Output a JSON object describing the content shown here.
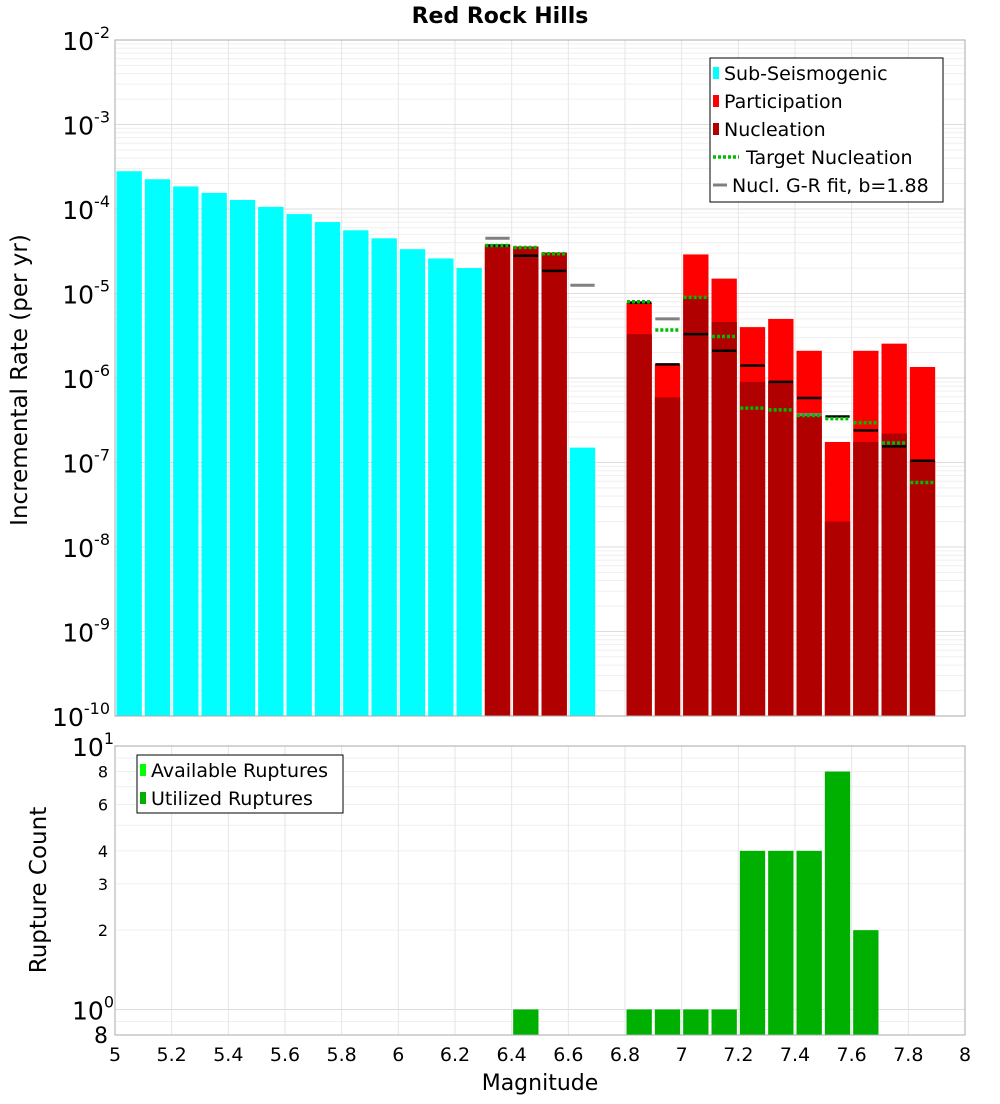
{
  "chart_data": [
    {
      "type": "bar",
      "scale": "log",
      "title": "Red Rock Hills",
      "xlabel": "",
      "ylabel": "Incremental Rate (per yr)",
      "xlim": [
        5,
        8
      ],
      "ylim": [
        1e-10,
        0.01
      ],
      "ytick_bases": [
        "10",
        "10",
        "10",
        "10",
        "10",
        "10",
        "10",
        "10",
        "10"
      ],
      "ytick_exps": [
        "-10",
        "-9",
        "-8",
        "-7",
        "-6",
        "-5",
        "-4",
        "-3",
        "-2"
      ],
      "ytick_values": [
        1e-10,
        1e-09,
        1e-08,
        1e-07,
        1e-06,
        1e-05,
        0.0001,
        0.001,
        0.01
      ],
      "bin_width": 0.1,
      "colors": {
        "sub_seismogenic": "#00ffff",
        "participation": "#ff0000",
        "nucleation": "#b00000",
        "target_nucleation": "#00bb00",
        "gr_fit": "#808080",
        "nucleation_marker": "#000000"
      },
      "legend": {
        "position": "top-right",
        "entries": [
          "Sub-Seismogenic",
          "Participation",
          "Nucleation",
          "Target Nucleation",
          "Nucl. G-R fit, b=1.88"
        ]
      },
      "sub_seismogenic": {
        "x": [
          5.05,
          5.15,
          5.25,
          5.35,
          5.45,
          5.55,
          5.65,
          5.75,
          5.85,
          5.95,
          6.05,
          6.15,
          6.25,
          6.65
        ],
        "values": [
          0.00028,
          0.000225,
          0.000185,
          0.000155,
          0.000128,
          0.000106,
          8.7e-05,
          7e-05,
          5.6e-05,
          4.5e-05,
          3.35e-05,
          2.6e-05,
          2e-05,
          1.5e-07
        ]
      },
      "participation": {
        "x": [
          6.35,
          6.45,
          6.55,
          6.85,
          6.95,
          7.05,
          7.15,
          7.25,
          7.35,
          7.45,
          7.55,
          7.65,
          7.75,
          7.85
        ],
        "values": [
          3.8e-05,
          3.6e-05,
          3.05e-05,
          7.8e-06,
          1.45e-06,
          2.9e-05,
          1.5e-05,
          4e-06,
          5e-06,
          2.1e-06,
          1.75e-07,
          2.1e-06,
          2.55e-06,
          1.35e-06
        ]
      },
      "nucleation": {
        "x": [
          6.35,
          6.45,
          6.55,
          6.85,
          6.95,
          7.05,
          7.15,
          7.25,
          7.35,
          7.45,
          7.55,
          7.65,
          7.75,
          7.85
        ],
        "values": [
          3.8e-05,
          3.6e-05,
          3.05e-05,
          3.3e-06,
          5.9e-07,
          9e-06,
          4.6e-06,
          9e-07,
          9e-07,
          3.5e-07,
          2e-08,
          1.75e-07,
          2.2e-07,
          1.05e-07
        ]
      },
      "nucleation_markers": {
        "x": [
          6.35,
          6.45,
          6.55,
          6.85,
          6.95,
          7.05,
          7.15,
          7.25,
          7.35,
          7.45,
          7.55,
          7.65,
          7.75,
          7.85
        ],
        "values": [
          3.7e-05,
          2.8e-05,
          1.85e-05,
          7.8e-06,
          1.45e-06,
          3.3e-06,
          2.1e-06,
          1.4e-06,
          9e-07,
          5.8e-07,
          3.5e-07,
          2.4e-07,
          1.55e-07,
          1.05e-07
        ]
      },
      "target_nucleation": {
        "x": [
          6.35,
          6.45,
          6.55,
          6.85,
          6.95,
          7.05,
          7.15,
          7.25,
          7.35,
          7.45,
          7.55,
          7.65,
          7.75,
          7.85
        ],
        "values": [
          3.7e-05,
          3.5e-05,
          2.95e-05,
          8e-06,
          3.7e-06,
          9e-06,
          3.1e-06,
          4.4e-07,
          4.2e-07,
          3.6e-07,
          3.3e-07,
          2.95e-07,
          1.7e-07,
          5.8e-08
        ]
      },
      "gr_fit": {
        "x": [
          6.35,
          6.65,
          6.95,
          7.45
        ],
        "values": [
          4.5e-05,
          1.25e-05,
          5e-06,
          3.7e-07
        ]
      }
    },
    {
      "type": "bar",
      "scale": "log",
      "title": "",
      "xlabel": "Magnitude",
      "ylabel": "Rupture Count",
      "xlim": [
        5,
        8
      ],
      "ylim": [
        0.8,
        10
      ],
      "xtick_values": [
        5,
        5.2,
        5.4,
        5.6,
        5.8,
        6,
        6.2,
        6.4,
        6.6,
        6.8,
        7,
        7.2,
        7.4,
        7.6,
        7.8,
        8
      ],
      "xtick_labels": [
        "5",
        "5.2",
        "5.4",
        "5.6",
        "5.8",
        "6",
        "6.2",
        "6.4",
        "6.6",
        "6.8",
        "7",
        "7.2",
        "7.4",
        "7.6",
        "7.8",
        "8"
      ],
      "ytick_values": [
        2,
        3,
        4,
        6,
        8
      ],
      "ytick_labels": [
        "2",
        "3",
        "4",
        "6",
        "8"
      ],
      "ytick_edge": {
        "top_base": "10",
        "top_exp": "1",
        "one_base": "10",
        "one_exp": "0",
        "bottom_label": "8"
      },
      "bin_width": 0.1,
      "colors": {
        "available": "#00ff00",
        "utilized": "#00b000"
      },
      "legend": {
        "position": "top-left",
        "entries": [
          "Available Ruptures",
          "Utilized Ruptures"
        ]
      },
      "utilized": {
        "x": [
          6.45,
          6.85,
          6.95,
          7.05,
          7.15,
          7.25,
          7.35,
          7.45,
          7.55,
          7.65
        ],
        "values": [
          1,
          1,
          1,
          1,
          1,
          4,
          4,
          4,
          8,
          2
        ]
      }
    }
  ]
}
